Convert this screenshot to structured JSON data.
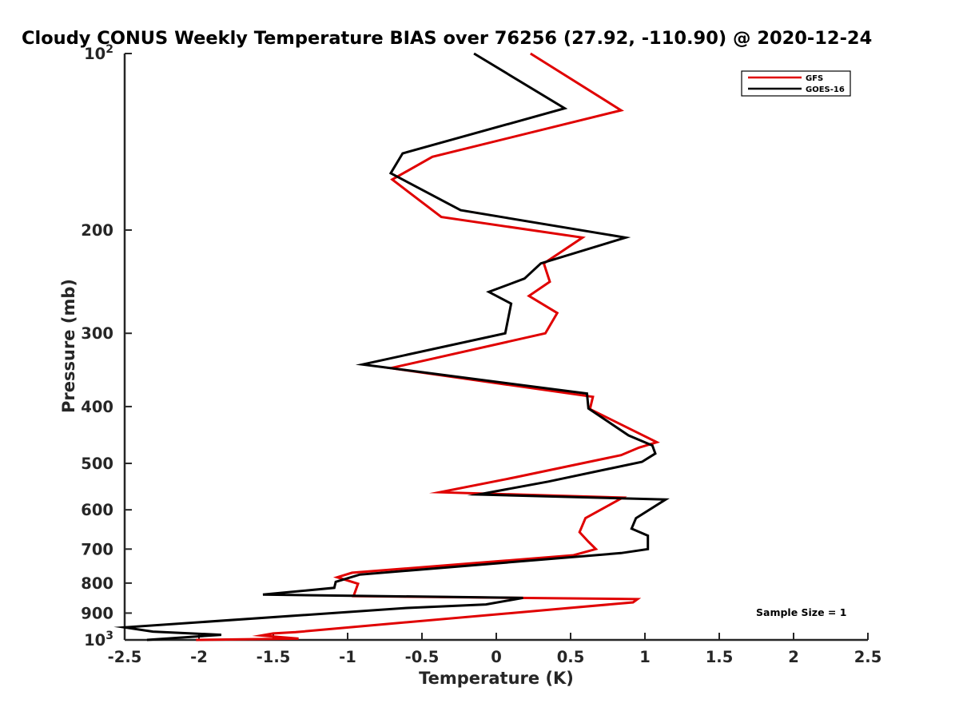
{
  "chart_data": {
    "type": "line",
    "title": "Cloudy CONUS Weekly Temperature BIAS over 76256 (27.92, -110.90) @ 2020-12-24",
    "xlabel": "Temperature (K)",
    "ylabel": "Pressure (mb)",
    "xlim": [
      -2.5,
      2.5
    ],
    "ylim": [
      100,
      1000
    ],
    "y_scale": "log",
    "y_reversed": true,
    "grid": false,
    "x_ticks": [
      -2.5,
      -2,
      -1.5,
      -1,
      -0.5,
      0,
      0.5,
      1,
      1.5,
      2,
      2.5
    ],
    "x_tick_labels": [
      "-2.5",
      "-2",
      "-1.5",
      "-1",
      "-0.5",
      "0",
      "0.5",
      "1",
      "1.5",
      "2",
      "2.5"
    ],
    "y_ticks": [
      {
        "value": 100,
        "base": "10",
        "exp": "2"
      },
      {
        "value": 200,
        "label": "200"
      },
      {
        "value": 300,
        "label": "300"
      },
      {
        "value": 400,
        "label": "400"
      },
      {
        "value": 500,
        "label": "500"
      },
      {
        "value": 600,
        "label": "600"
      },
      {
        "value": 700,
        "label": "700"
      },
      {
        "value": 800,
        "label": "800"
      },
      {
        "value": 900,
        "label": "900"
      },
      {
        "value": 1000,
        "base": "10",
        "exp": "3"
      }
    ],
    "legend": {
      "placement": "top-right"
    },
    "annotation": "Sample Size = 1",
    "series": [
      {
        "name": "GFS",
        "color": "#e00000",
        "points": [
          [
            0.23,
            100
          ],
          [
            0.84,
            125
          ],
          [
            -0.43,
            150
          ],
          [
            -0.7,
            164
          ],
          [
            -0.37,
            190
          ],
          [
            0.58,
            206
          ],
          [
            0.32,
            228
          ],
          [
            0.36,
            245
          ],
          [
            0.22,
            259
          ],
          [
            0.41,
            277
          ],
          [
            0.33,
            300
          ],
          [
            -0.71,
            344
          ],
          [
            0.65,
            385
          ],
          [
            0.63,
            404
          ],
          [
            1.08,
            460
          ],
          [
            0.96,
            470
          ],
          [
            0.84,
            484
          ],
          [
            0.13,
            528
          ],
          [
            -0.38,
            560
          ],
          [
            0.85,
            572
          ],
          [
            0.6,
            620
          ],
          [
            0.56,
            655
          ],
          [
            0.62,
            680
          ],
          [
            0.67,
            700
          ],
          [
            0.52,
            717
          ],
          [
            0.02,
            734
          ],
          [
            -0.97,
            768
          ],
          [
            -1.07,
            782
          ],
          [
            -0.93,
            802
          ],
          [
            -0.96,
            842
          ],
          [
            0.95,
            852
          ],
          [
            0.92,
            863
          ],
          [
            -0.95,
            950
          ],
          [
            -1.35,
            970
          ],
          [
            -1.5,
            975
          ],
          [
            -1.58,
            983
          ],
          [
            -1.33,
            995
          ],
          [
            -2.02,
            1000
          ]
        ]
      },
      {
        "name": "GOES-16",
        "color": "#000000",
        "points": [
          [
            -0.15,
            100
          ],
          [
            0.46,
            124
          ],
          [
            -0.63,
            148
          ],
          [
            -0.71,
            160
          ],
          [
            -0.24,
            185
          ],
          [
            0.87,
            206
          ],
          [
            0.3,
            228
          ],
          [
            0.19,
            242
          ],
          [
            -0.05,
            255
          ],
          [
            0.1,
            267
          ],
          [
            0.06,
            300
          ],
          [
            -0.9,
            339
          ],
          [
            0.61,
            380
          ],
          [
            0.62,
            403
          ],
          [
            0.89,
            448
          ],
          [
            1.05,
            466
          ],
          [
            1.07,
            481
          ],
          [
            0.98,
            497
          ],
          [
            0.35,
            537
          ],
          [
            -0.12,
            565
          ],
          [
            1.14,
            576
          ],
          [
            0.94,
            620
          ],
          [
            0.91,
            646
          ],
          [
            1.02,
            664
          ],
          [
            1.02,
            700
          ],
          [
            0.84,
            711
          ],
          [
            -0.92,
            774
          ],
          [
            -1.08,
            796
          ],
          [
            -1.09,
            815
          ],
          [
            -1.57,
            837
          ],
          [
            0.18,
            848
          ],
          [
            -0.07,
            870
          ],
          [
            -0.6,
            882
          ],
          [
            -2.5,
            952
          ],
          [
            -2.31,
            968
          ],
          [
            -1.85,
            980
          ],
          [
            -2.35,
            1000
          ]
        ]
      }
    ]
  }
}
